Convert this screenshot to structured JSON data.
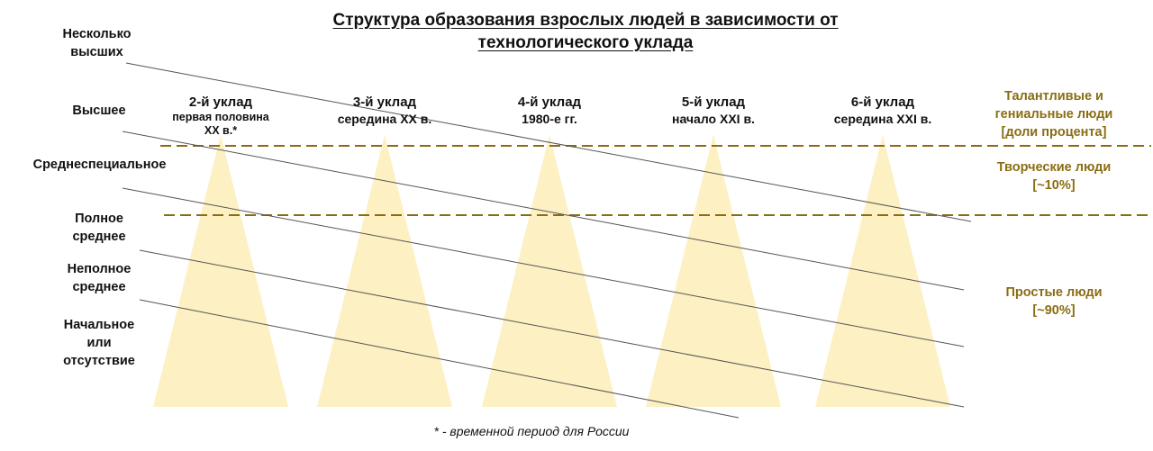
{
  "title": {
    "line1": "Структура образования взрослых людей в зависимости от",
    "line2": "технологического уклада"
  },
  "education_levels": [
    [
      "Несколько",
      "высших"
    ],
    [
      "Высшее"
    ],
    [
      "Среднеспециальное"
    ],
    [
      "Полное",
      "среднее"
    ],
    [
      "Неполное",
      "среднее"
    ],
    [
      "Начальное",
      "или",
      "отсутствие"
    ]
  ],
  "ukladi": [
    {
      "name": "2-й уклад",
      "period": "первая половина",
      "period2": "XX в.*"
    },
    {
      "name": "3-й уклад",
      "period": "середина XX в."
    },
    {
      "name": "4-й уклад",
      "period": "1980-е гг."
    },
    {
      "name": "5-й уклад",
      "period": "начало XXI в."
    },
    {
      "name": "6-й уклад",
      "period": "середина XXI в."
    }
  ],
  "groups": [
    {
      "lines": [
        "Талантливые и",
        "гениальные люди",
        "[доли процента]"
      ]
    },
    {
      "lines": [
        "Творческие люди",
        "[~10%]"
      ]
    },
    {
      "lines": [
        "Простые люди",
        "[~90%]"
      ]
    }
  ],
  "footnote": "* - временной период для России",
  "colors": {
    "triangle": "#fdf0c2",
    "dashed_line": "#8a6d12",
    "group_text": "#8a6d12",
    "slanted_line": "#555555"
  }
}
